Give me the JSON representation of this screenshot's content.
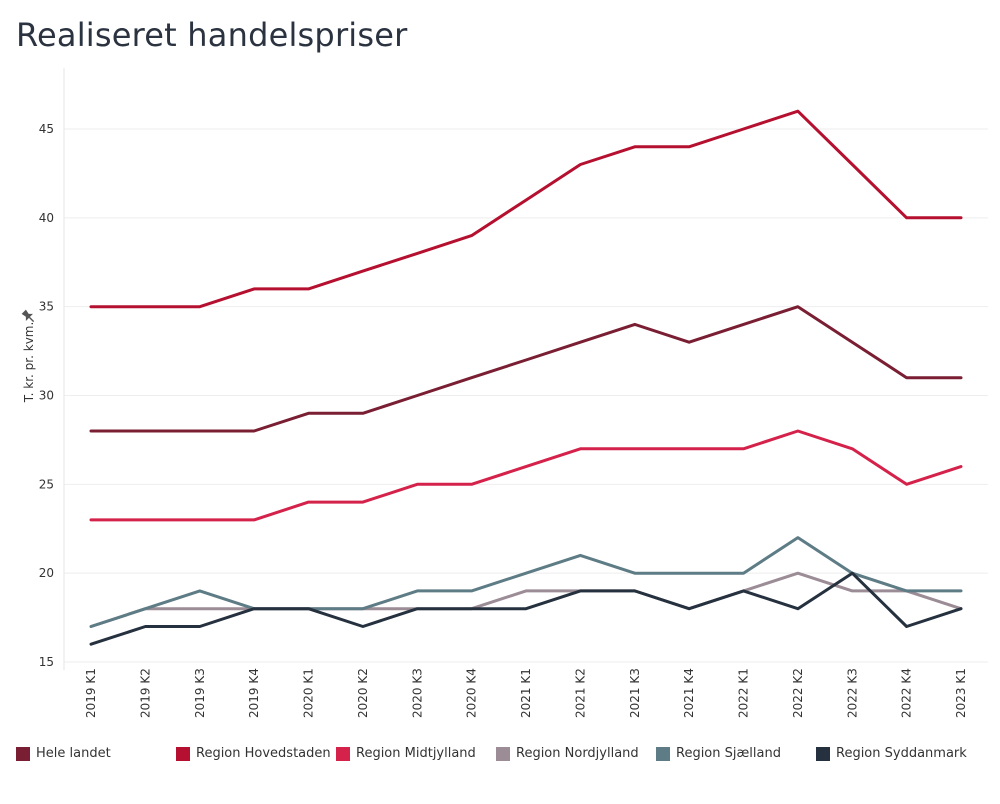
{
  "title": "Realiseret handelspriser",
  "chart_data": {
    "type": "line",
    "ylabel": "T. kr. pr. kvm.",
    "xlabel": "",
    "ylim": [
      15,
      47
    ],
    "yticks": [
      15,
      20,
      25,
      30,
      35,
      40,
      45
    ],
    "grid": true,
    "legend_position": "bottom",
    "categories": [
      "2019 K1",
      "2019 K2",
      "2019 K3",
      "2019 K4",
      "2020 K1",
      "2020 K2",
      "2020 K3",
      "2020 K4",
      "2021 K1",
      "2021 K2",
      "2021 K3",
      "2021 K4",
      "2022 K1",
      "2022 K2",
      "2022 K3",
      "2022 K4",
      "2023 K1"
    ],
    "series": [
      {
        "name": "Hele landet",
        "color": "#7a1f33",
        "values": [
          28,
          28,
          28,
          28,
          29,
          29,
          30,
          31,
          32,
          33,
          34,
          33,
          34,
          35,
          33,
          31,
          31
        ]
      },
      {
        "name": "Region Hovedstaden",
        "color": "#b5102f",
        "values": [
          35,
          35,
          35,
          36,
          36,
          37,
          38,
          39,
          41,
          43,
          44,
          44,
          45,
          46,
          43,
          40,
          40
        ]
      },
      {
        "name": "Region Midtjylland",
        "color": "#d4224a",
        "values": [
          23,
          23,
          23,
          23,
          24,
          24,
          25,
          25,
          26,
          27,
          27,
          27,
          27,
          28,
          27,
          25,
          26
        ]
      },
      {
        "name": "Region Nordjylland",
        "color": "#9b8c96",
        "values": [
          17,
          18,
          18,
          18,
          18,
          18,
          18,
          18,
          19,
          19,
          19,
          18,
          19,
          20,
          19,
          19,
          18
        ]
      },
      {
        "name": "Region Sjælland",
        "color": "#5e7c85",
        "values": [
          17,
          18,
          19,
          18,
          18,
          18,
          19,
          19,
          20,
          21,
          20,
          20,
          20,
          22,
          20,
          19,
          19
        ]
      },
      {
        "name": "Region Syddanmark",
        "color": "#26313f",
        "values": [
          16,
          17,
          17,
          18,
          18,
          17,
          18,
          18,
          18,
          19,
          19,
          18,
          19,
          18,
          20,
          17,
          18
        ]
      }
    ]
  }
}
